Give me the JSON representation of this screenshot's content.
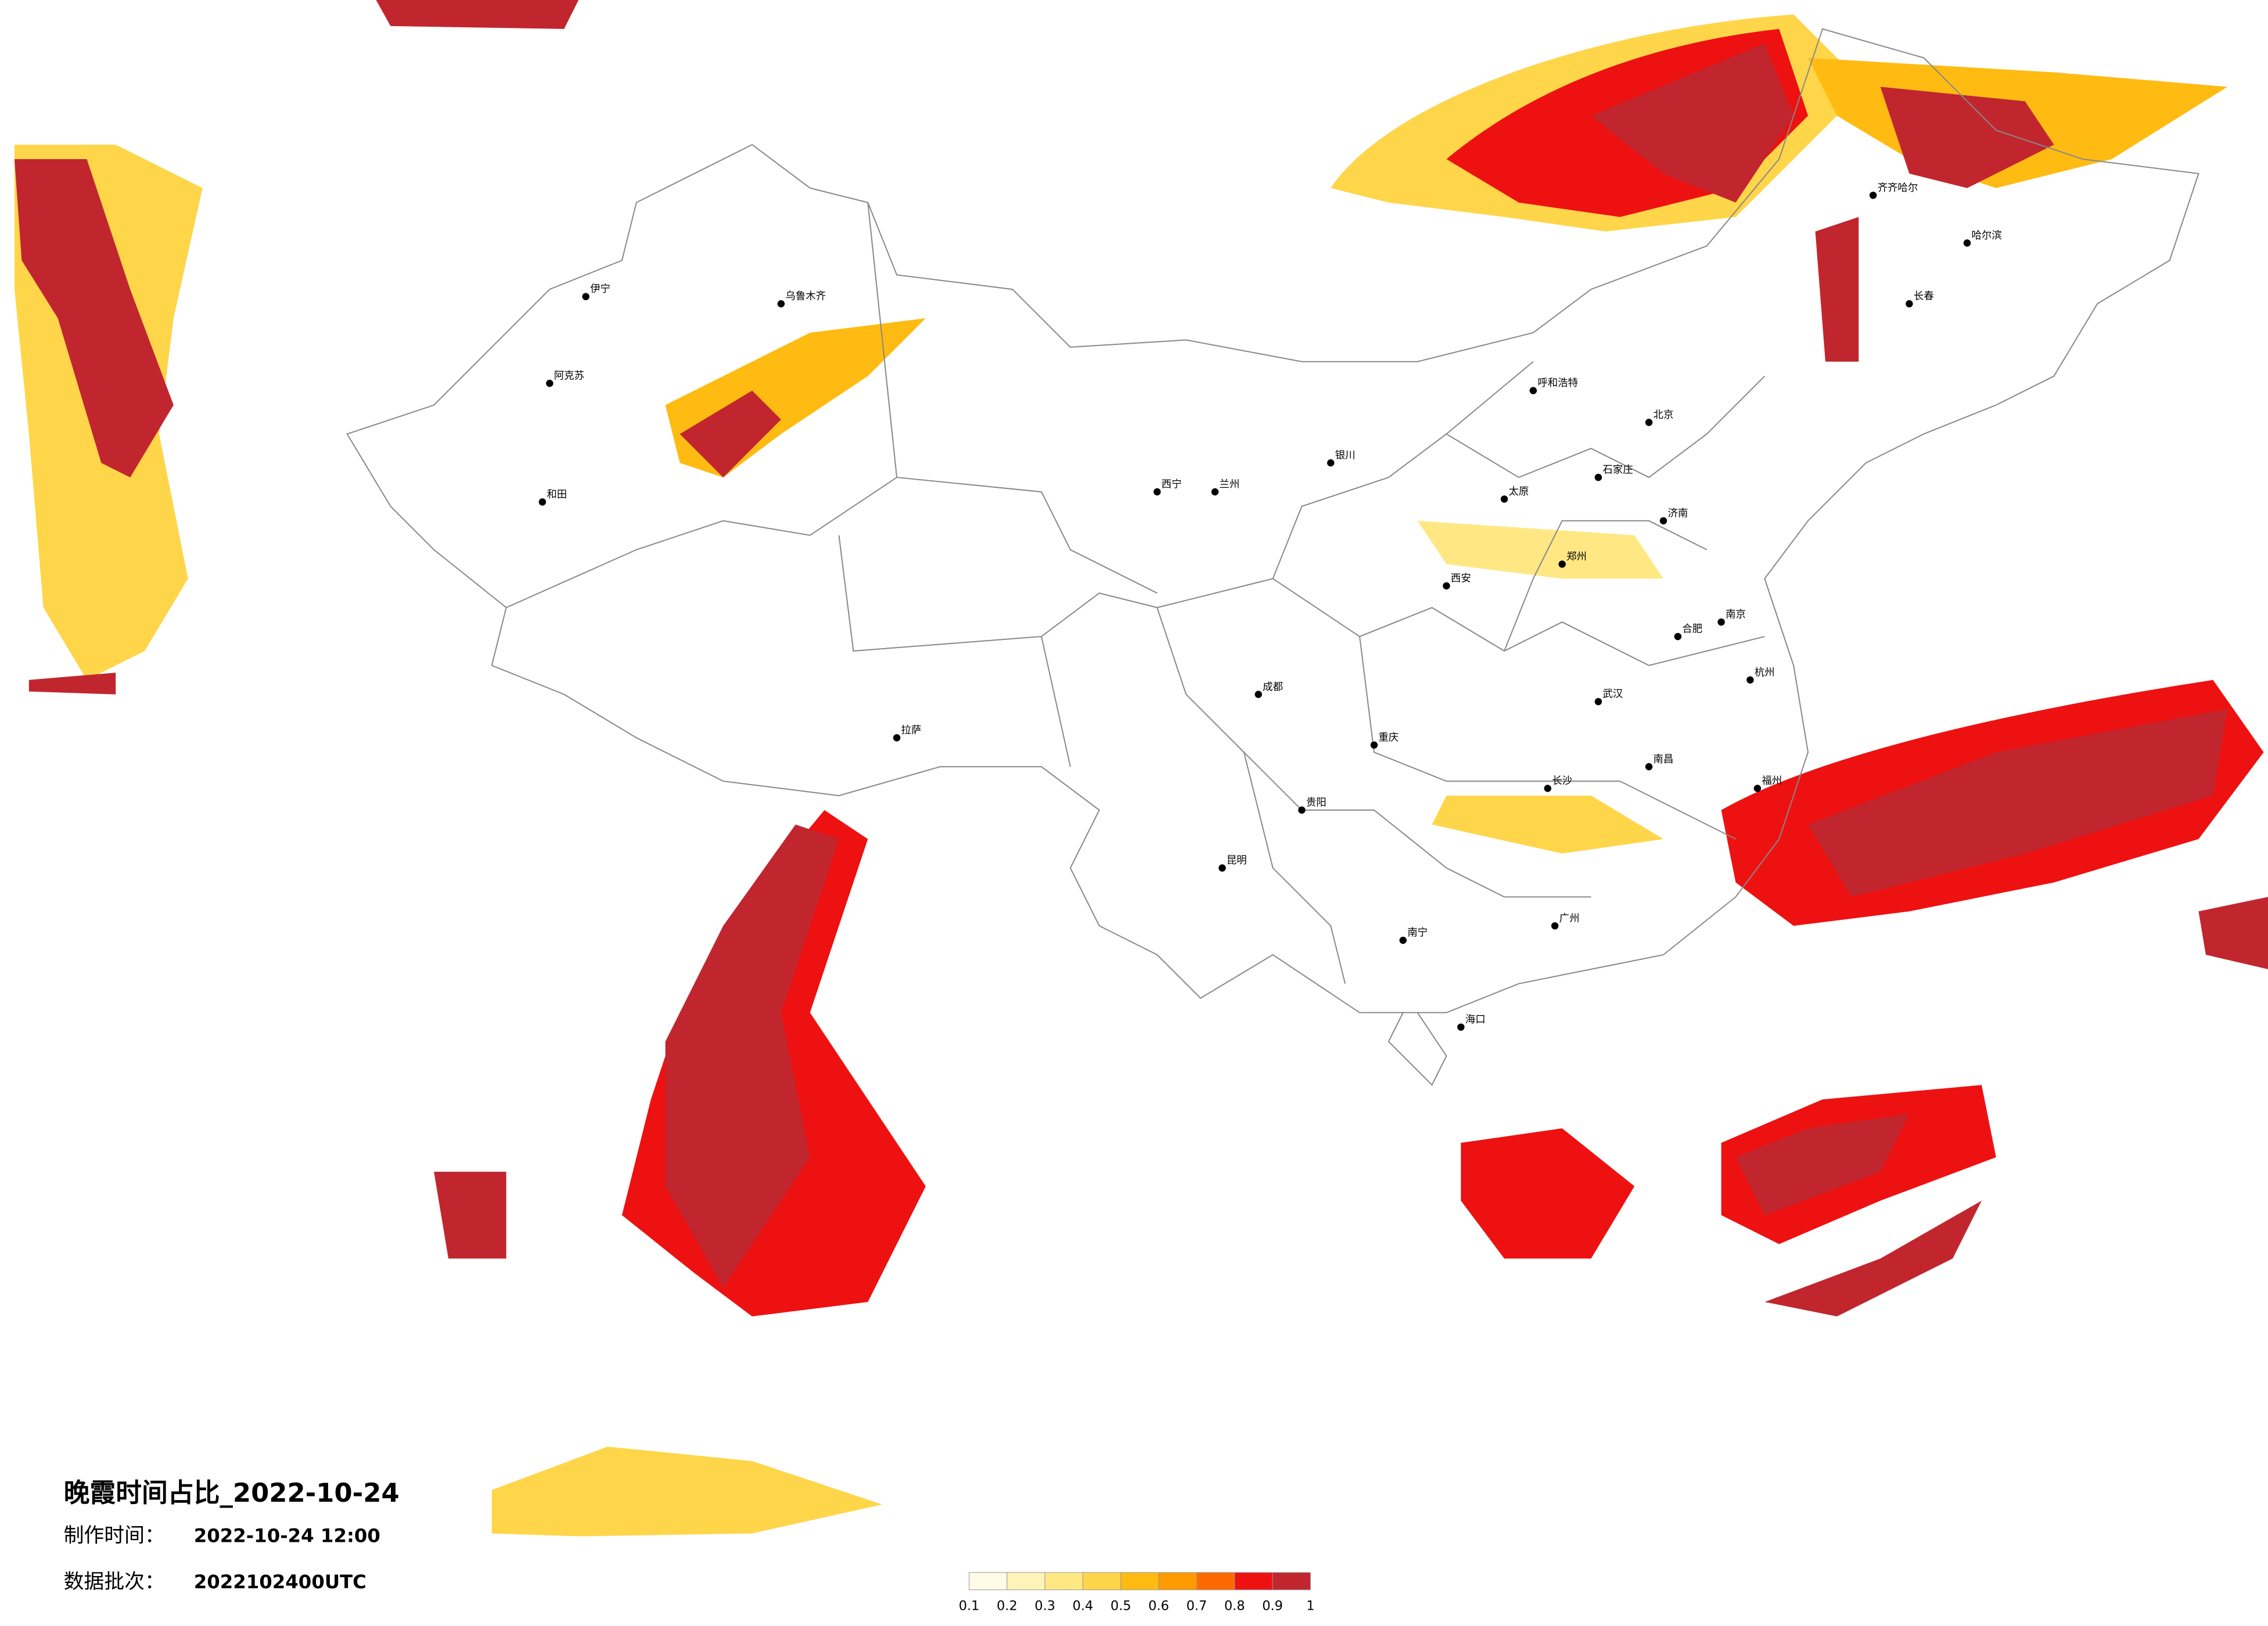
{
  "title": "晚霞时间占比_2022-10-24",
  "meta": [
    {
      "label": "制作时间：",
      "value": "2022-10-24 12:00"
    },
    {
      "label": "数据批次：",
      "value": "2022102400UTC"
    }
  ],
  "legend": {
    "ticks": [
      0.1,
      0.2,
      0.3,
      0.4,
      0.5,
      0.6,
      0.7,
      0.8,
      0.9,
      1
    ],
    "colors": [
      "#fffbe6",
      "#fff3b8",
      "#ffe884",
      "#ffd54a",
      "#ffbb12",
      "#ff9a00",
      "#ff6a00",
      "#ee1111",
      "#c1262e"
    ]
  },
  "cities": [
    "乌鲁木齐",
    "伊宁",
    "阿克苏",
    "和田",
    "哈尔滨",
    "齐齐哈尔",
    "长春",
    "北京",
    "石家庄",
    "济南",
    "郑州",
    "西安",
    "成都",
    "重庆",
    "长沙",
    "南昌",
    "杭州",
    "福州",
    "广州",
    "南宁",
    "昆明",
    "贵阳",
    "拉萨",
    "海口",
    "银川",
    "兰州",
    "西宁",
    "呼和浩特",
    "太原",
    "合肥",
    "南京",
    "武汉"
  ]
}
